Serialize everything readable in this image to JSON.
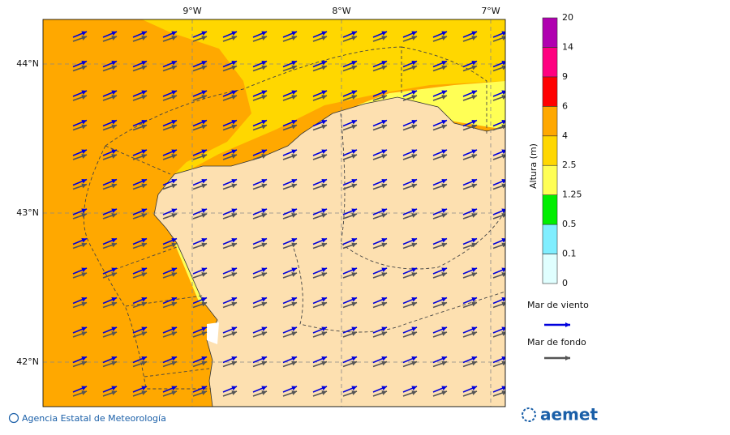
{
  "map": {
    "lon_labels": [
      "9°W",
      "8°W",
      "7°W"
    ],
    "lat_labels": [
      "44°N",
      "43°N",
      "42°N"
    ],
    "colorbar": {
      "title": "Altura (m)",
      "levels": [
        0,
        0.1,
        0.5,
        1.25,
        2.5,
        4,
        6,
        9,
        14,
        20
      ],
      "colors": [
        "#e0ffff",
        "#80eeff",
        "#00ee00",
        "#ffff55",
        "#ffd700",
        "#ffa800",
        "#ff0000",
        "#ff0080",
        "#b000b0"
      ]
    },
    "legend": [
      {
        "label": "Mar de viento",
        "color": "#0000dd"
      },
      {
        "label": "Mar de fondo",
        "color": "#555555"
      }
    ],
    "footer": {
      "credit": "Agencia Estatal de Meteorología",
      "logo": "aemet"
    }
  }
}
